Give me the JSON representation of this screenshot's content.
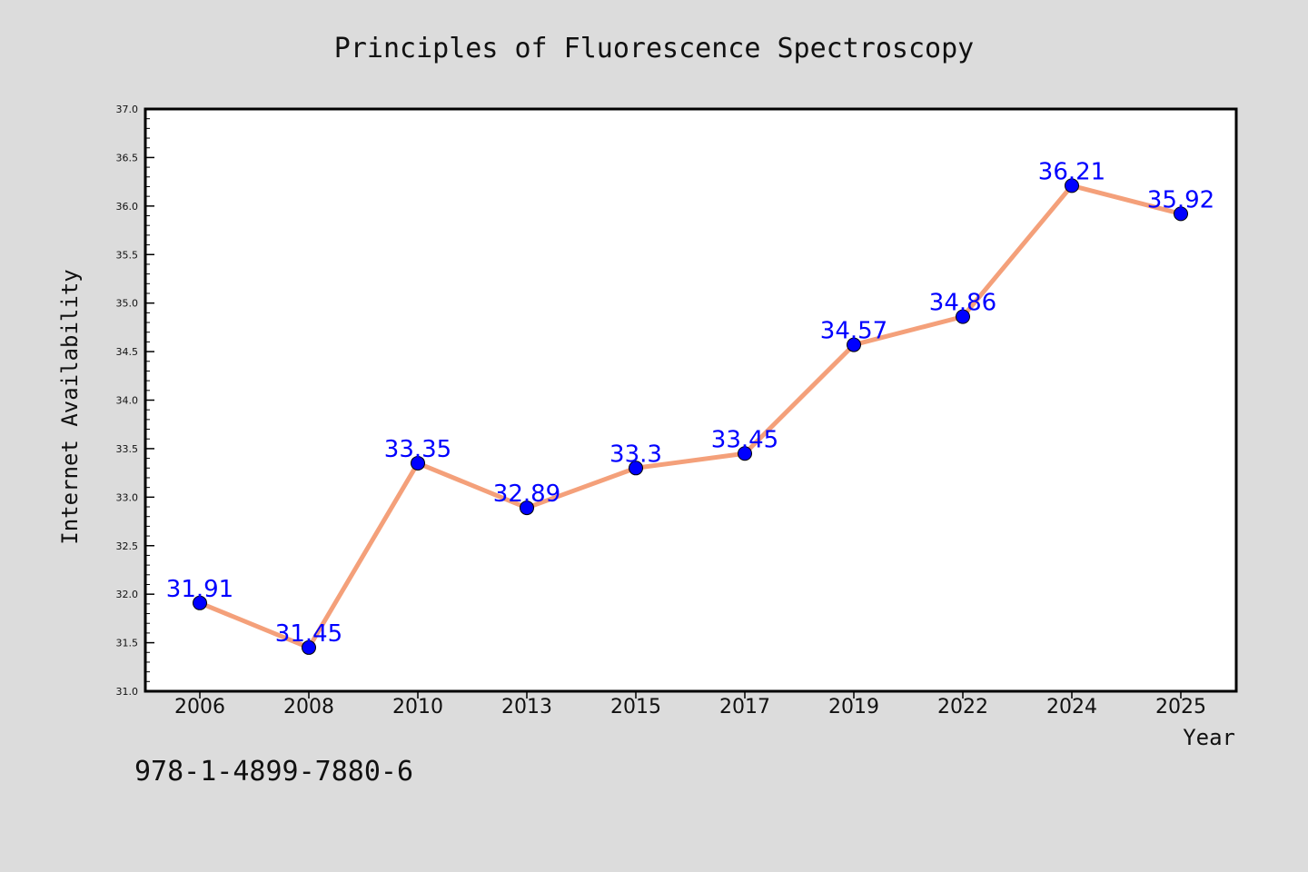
{
  "chart_data": {
    "type": "line",
    "title": "Principles of Fluorescence Spectroscopy",
    "xlabel": "Year",
    "ylabel": "Internet Availability",
    "categories": [
      "2006",
      "2008",
      "2010",
      "2013",
      "2015",
      "2017",
      "2019",
      "2022",
      "2024",
      "2025"
    ],
    "series": [
      {
        "values": [
          31.91,
          31.45,
          33.35,
          32.89,
          33.3,
          33.45,
          34.57,
          34.86,
          36.21,
          35.92
        ],
        "data_labels": [
          "31.91",
          "31.45",
          "33.35",
          "32.89",
          "33.3",
          "33.45",
          "34.57",
          "34.86",
          "36.21",
          "35.92"
        ]
      }
    ],
    "ylim": [
      31.0,
      37.0
    ],
    "yticks": [
      "31.0",
      "31.5",
      "32.0",
      "32.5",
      "33.0",
      "33.5",
      "34.0",
      "34.5",
      "35.0",
      "35.5",
      "36.0",
      "36.5",
      "37.0"
    ],
    "grid": false,
    "legend": "none",
    "colors": {
      "line": "#f4a07a",
      "marker": "#0000ff",
      "label": "#0000ff",
      "background": "#dcdcdc",
      "plot_background": "#ffffff"
    }
  },
  "footer": {
    "isbn": "978-1-4899-7880-6"
  }
}
